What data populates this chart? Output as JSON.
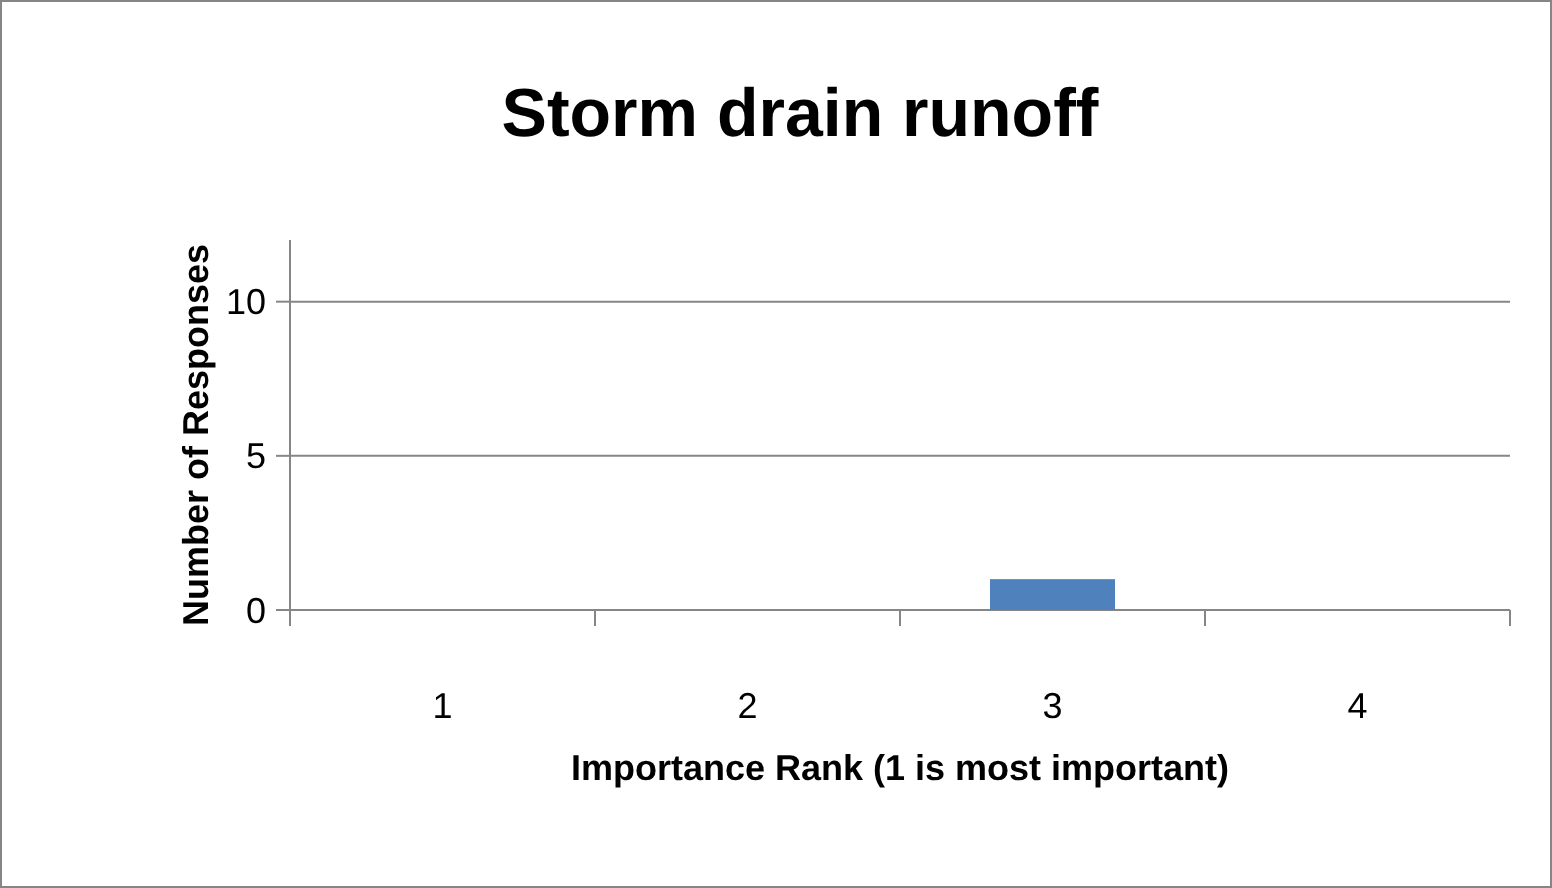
{
  "chart_data": {
    "type": "bar",
    "title": "Storm drain runoff",
    "xlabel": "Importance Rank (1 is most important)",
    "ylabel": "Number of Responses",
    "categories": [
      "1",
      "2",
      "3",
      "4"
    ],
    "values": [
      0,
      0,
      1,
      0
    ],
    "color": "#4f81bd",
    "ylim": [
      0,
      12
    ],
    "yticks": [
      0,
      5,
      10
    ],
    "grid": "y"
  }
}
